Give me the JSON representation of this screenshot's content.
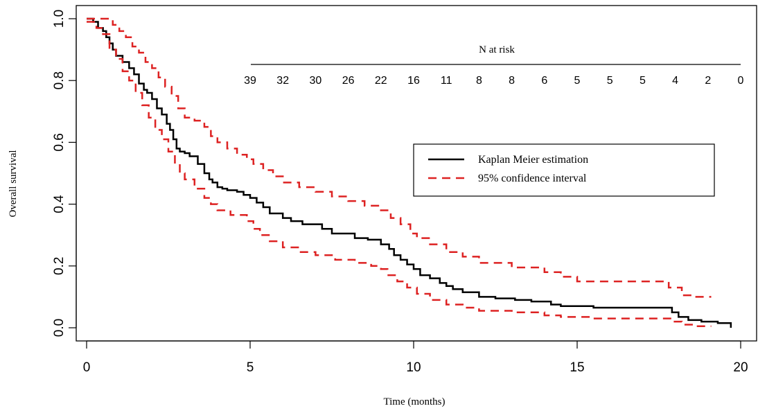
{
  "chart_data": {
    "type": "line",
    "title": "",
    "xlabel": "Time (months)",
    "ylabel": "Overall survival",
    "xlim": [
      0,
      20
    ],
    "ylim": [
      0,
      1
    ],
    "x_ticks": [
      0,
      5,
      10,
      15,
      20
    ],
    "y_ticks": [
      0.0,
      0.2,
      0.4,
      0.6,
      0.8,
      1.0
    ],
    "x_tick_labels": [
      "0",
      "5",
      "10",
      "15",
      "20"
    ],
    "y_tick_labels": [
      "0.0",
      "0.2",
      "0.4",
      "0.6",
      "0.8",
      "1.0"
    ],
    "grid": false,
    "legend_position": "right",
    "colors": {
      "estimate": "#000000",
      "ci": "#dd2222"
    },
    "risk_table": {
      "title": "N at risk",
      "times": [
        5,
        6,
        7,
        8,
        9,
        10,
        11,
        12,
        13,
        14,
        15,
        16,
        17,
        18,
        19,
        20
      ],
      "counts": [
        "39",
        "32",
        "30",
        "26",
        "22",
        "16",
        "11",
        "8",
        "8",
        "6",
        "5",
        "5",
        "5",
        "4",
        "2",
        "0"
      ]
    },
    "series": [
      {
        "name": "Kaplan Meier estimation",
        "style": "solid",
        "x": [
          0,
          0.2,
          0.35,
          0.5,
          0.6,
          0.7,
          0.8,
          0.9,
          1.1,
          1.3,
          1.45,
          1.6,
          1.75,
          1.85,
          2.0,
          2.15,
          2.3,
          2.45,
          2.55,
          2.65,
          2.75,
          2.85,
          3.0,
          3.15,
          3.4,
          3.6,
          3.75,
          3.85,
          4.0,
          4.15,
          4.3,
          4.6,
          4.8,
          5.0,
          5.2,
          5.4,
          5.6,
          6.0,
          6.25,
          6.6,
          7.2,
          7.5,
          8.2,
          8.6,
          9.0,
          9.25,
          9.4,
          9.6,
          9.8,
          10.0,
          10.2,
          10.5,
          10.8,
          11.0,
          11.2,
          11.5,
          12.0,
          12.5,
          13.1,
          13.6,
          14.2,
          14.5,
          15.5,
          17.5,
          17.9,
          18.1,
          18.4,
          18.8,
          19.3,
          19.7
        ],
        "y": [
          1.0,
          0.99,
          0.97,
          0.96,
          0.94,
          0.92,
          0.9,
          0.88,
          0.86,
          0.84,
          0.82,
          0.79,
          0.77,
          0.76,
          0.74,
          0.71,
          0.69,
          0.66,
          0.64,
          0.61,
          0.58,
          0.57,
          0.565,
          0.555,
          0.53,
          0.5,
          0.48,
          0.47,
          0.455,
          0.45,
          0.445,
          0.44,
          0.43,
          0.42,
          0.405,
          0.39,
          0.37,
          0.355,
          0.345,
          0.335,
          0.32,
          0.305,
          0.29,
          0.285,
          0.27,
          0.255,
          0.235,
          0.22,
          0.205,
          0.19,
          0.17,
          0.16,
          0.145,
          0.135,
          0.125,
          0.115,
          0.1,
          0.095,
          0.09,
          0.085,
          0.075,
          0.07,
          0.065,
          0.065,
          0.05,
          0.035,
          0.025,
          0.02,
          0.015,
          0.0
        ]
      },
      {
        "name": "95% confidence interval",
        "style": "dashed",
        "x": [
          0,
          0.3,
          0.6,
          0.8,
          1.0,
          1.2,
          1.4,
          1.6,
          1.8,
          2.0,
          2.2,
          2.4,
          2.6,
          2.8,
          3.0,
          3.3,
          3.6,
          3.8,
          4.0,
          4.3,
          4.6,
          4.9,
          5.1,
          5.4,
          5.7,
          6.0,
          6.5,
          7.0,
          7.5,
          8.0,
          8.5,
          9.0,
          9.3,
          9.6,
          9.9,
          10.1,
          10.5,
          11.0,
          11.5,
          12.0,
          13.0,
          14.0,
          14.5,
          15.0,
          16.0,
          17.0,
          17.8,
          18.2,
          18.6,
          19.1
        ],
        "y": [
          1.0,
          1.0,
          1.0,
          0.98,
          0.96,
          0.94,
          0.91,
          0.89,
          0.86,
          0.84,
          0.81,
          0.78,
          0.75,
          0.71,
          0.68,
          0.67,
          0.65,
          0.62,
          0.6,
          0.58,
          0.56,
          0.545,
          0.53,
          0.51,
          0.49,
          0.47,
          0.455,
          0.44,
          0.425,
          0.41,
          0.395,
          0.38,
          0.355,
          0.335,
          0.305,
          0.29,
          0.27,
          0.245,
          0.23,
          0.21,
          0.195,
          0.18,
          0.165,
          0.15,
          0.15,
          0.15,
          0.13,
          0.105,
          0.1,
          0.1
        ]
      },
      {
        "name": "95% confidence interval",
        "style": "dashed",
        "x": [
          0,
          0.3,
          0.5,
          0.7,
          0.9,
          1.1,
          1.3,
          1.5,
          1.7,
          1.9,
          2.1,
          2.3,
          2.5,
          2.7,
          2.85,
          3.0,
          3.3,
          3.6,
          3.8,
          4.0,
          4.4,
          4.9,
          5.1,
          5.3,
          5.6,
          6.0,
          6.5,
          7.0,
          7.6,
          8.2,
          8.7,
          9.0,
          9.2,
          9.5,
          9.8,
          10.1,
          10.5,
          11.0,
          11.5,
          12.0,
          13.0,
          14.0,
          14.5,
          15.5,
          17.5,
          17.9,
          18.2,
          18.6,
          19.1
        ],
        "y": [
          0.99,
          0.97,
          0.95,
          0.9,
          0.87,
          0.83,
          0.8,
          0.76,
          0.72,
          0.68,
          0.64,
          0.61,
          0.57,
          0.53,
          0.5,
          0.48,
          0.45,
          0.42,
          0.4,
          0.38,
          0.365,
          0.345,
          0.32,
          0.3,
          0.28,
          0.26,
          0.245,
          0.235,
          0.22,
          0.21,
          0.2,
          0.19,
          0.17,
          0.15,
          0.13,
          0.11,
          0.09,
          0.075,
          0.065,
          0.055,
          0.05,
          0.04,
          0.035,
          0.03,
          0.03,
          0.02,
          0.01,
          0.005,
          0.005
        ]
      }
    ]
  }
}
